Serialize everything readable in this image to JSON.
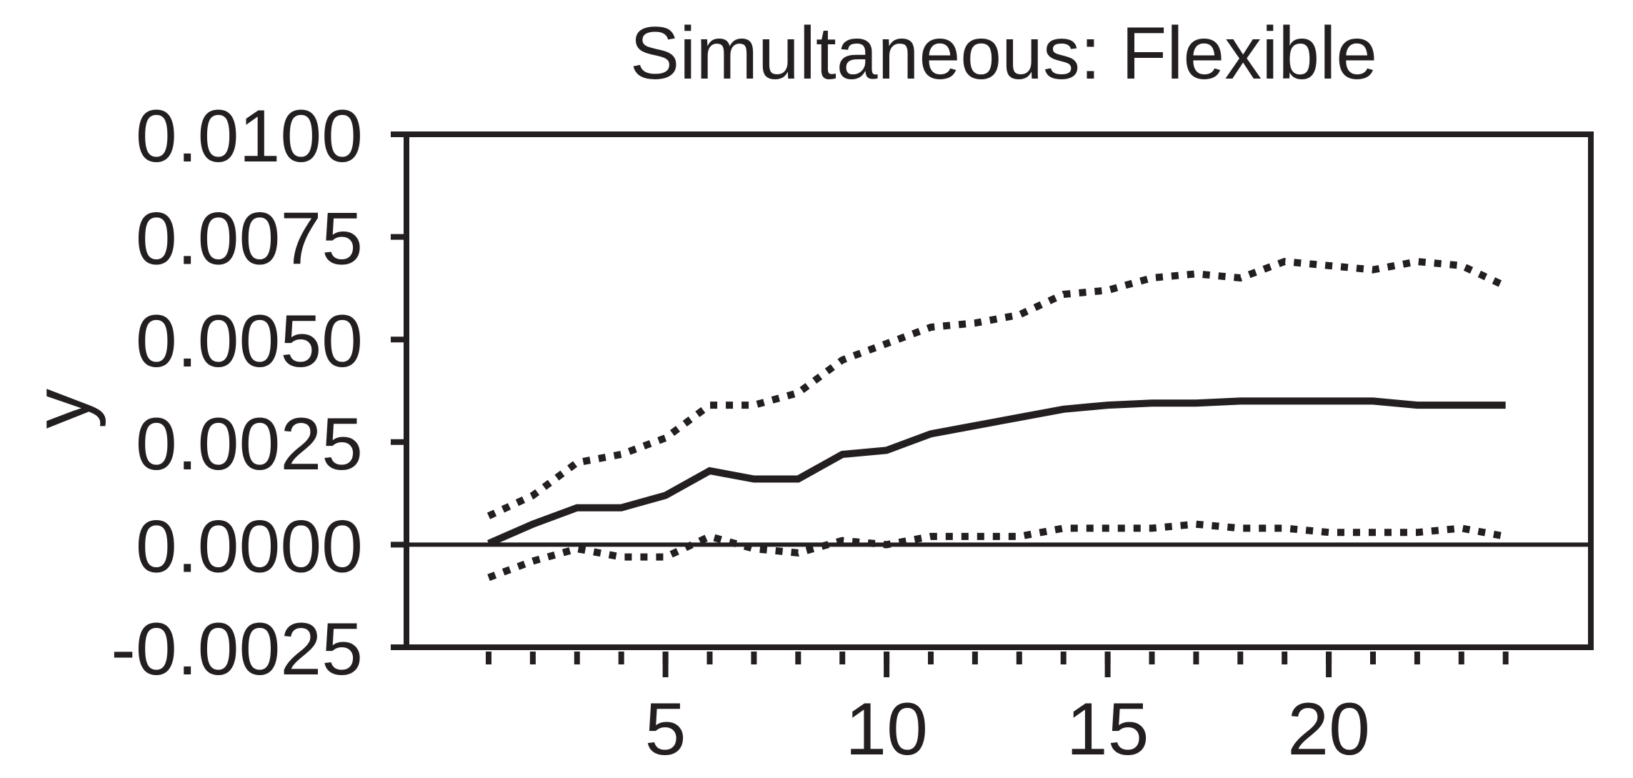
{
  "chart_data": {
    "type": "line",
    "title": "Simultaneous: Flexible",
    "xlabel": "",
    "ylabel": "y",
    "xlim": [
      -3,
      28
    ],
    "ylim": [
      -0.0025,
      0.01
    ],
    "xticks_major": [
      5,
      10,
      15,
      20
    ],
    "xticks_minor": [
      1,
      2,
      3,
      4,
      5,
      6,
      7,
      8,
      9,
      10,
      11,
      12,
      13,
      14,
      15,
      16,
      17,
      18,
      19,
      20,
      21,
      22,
      23,
      24
    ],
    "yticks": [
      -0.0025,
      0.0,
      0.0025,
      0.005,
      0.0075,
      0.01
    ],
    "ytick_labels": [
      "-0.0025",
      "0.0000",
      "0.0025",
      "0.0050",
      "0.0075",
      "0.0100"
    ],
    "xtick_labels": [
      "5",
      "10",
      "15",
      "20"
    ],
    "zero_line": true,
    "grid": false,
    "legend": "none",
    "x": [
      1,
      2,
      3,
      4,
      5,
      6,
      7,
      8,
      9,
      10,
      11,
      12,
      13,
      14,
      15,
      16,
      17,
      18,
      19,
      20,
      21,
      22,
      23,
      24
    ],
    "series": [
      {
        "style": "solid",
        "color": "#231f20",
        "values": [
          3e-05,
          0.0005,
          0.0009,
          0.0009,
          0.0012,
          0.0018,
          0.0016,
          0.0016,
          0.0022,
          0.0023,
          0.0027,
          0.0029,
          0.0031,
          0.0033,
          0.0034,
          0.00345,
          0.00345,
          0.0035,
          0.0035,
          0.0035,
          0.0035,
          0.0034,
          0.0034,
          0.0034
        ]
      },
      {
        "style": "dotted",
        "color": "#231f20",
        "values": [
          0.0007,
          0.0012,
          0.002,
          0.0022,
          0.0026,
          0.0034,
          0.0034,
          0.0037,
          0.0045,
          0.0049,
          0.0053,
          0.0054,
          0.0056,
          0.0061,
          0.0062,
          0.0065,
          0.0066,
          0.0065,
          0.0069,
          0.0068,
          0.0067,
          0.0069,
          0.0068,
          0.0063
        ]
      },
      {
        "style": "dotted",
        "color": "#231f20",
        "values": [
          -0.0008,
          -0.0004,
          -0.0001,
          -0.0003,
          -0.0003,
          0.0002,
          -0.0001,
          -0.0002,
          0.0001,
          0.0,
          0.0002,
          0.0002,
          0.0002,
          0.0004,
          0.0004,
          0.0004,
          0.0005,
          0.0004,
          0.0004,
          0.0003,
          0.0003,
          0.0003,
          0.0004,
          0.0002
        ]
      }
    ]
  }
}
